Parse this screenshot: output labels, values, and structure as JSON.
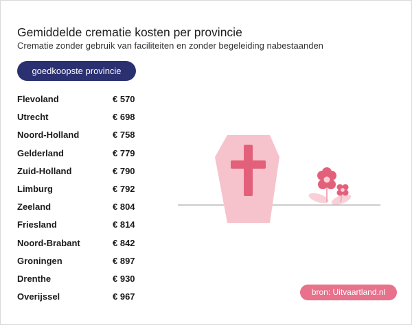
{
  "header": {
    "title": "Gemiddelde crematie kosten per provincie",
    "subtitle": "Crematie zonder gebruik van faciliteiten en zonder begeleiding nabestaanden"
  },
  "sort_button": {
    "label": "goedkoopste provincie"
  },
  "provinces": [
    {
      "name": "Flevoland",
      "price": "€ 570"
    },
    {
      "name": "Utrecht",
      "price": "€ 698"
    },
    {
      "name": "Noord-Holland",
      "price": "€ 758"
    },
    {
      "name": "Gelderland",
      "price": "€ 779"
    },
    {
      "name": "Zuid-Holland",
      "price": "€ 790"
    },
    {
      "name": "Limburg",
      "price": "€ 792"
    },
    {
      "name": "Zeeland",
      "price": "€ 804"
    },
    {
      "name": "Friesland",
      "price": "€ 814"
    },
    {
      "name": "Noord-Brabant",
      "price": "€ 842"
    },
    {
      "name": "Groningen",
      "price": "€ 897"
    },
    {
      "name": "Drenthe",
      "price": "€ 930"
    },
    {
      "name": "Overijssel",
      "price": "€ 967"
    }
  ],
  "source": {
    "label": "bron: Uitvaartland.nl"
  },
  "colors": {
    "button_bg": "#2b3070",
    "source_bg": "#e8718b",
    "coffin": "#f6c3cc",
    "cross": "#e3607b",
    "flower": "#e3607b",
    "ground_line": "#9a9a9a"
  },
  "icons": {
    "coffin": "coffin-icon",
    "cross": "cross-icon",
    "flowers": "flowers-icon"
  }
}
